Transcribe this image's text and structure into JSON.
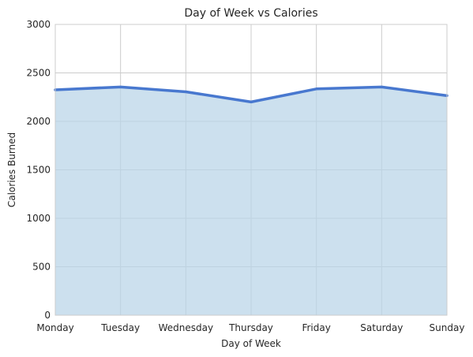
{
  "chart_data": {
    "type": "area",
    "title": "Day of Week vs Calories",
    "xlabel": "Day of Week",
    "ylabel": "Calories Burned",
    "categories": [
      "Monday",
      "Tuesday",
      "Wednesday",
      "Thursday",
      "Friday",
      "Saturday",
      "Sunday"
    ],
    "series": [
      {
        "values": [
          2325,
          2355,
          2305,
          2200,
          2335,
          2355,
          2265
        ]
      }
    ],
    "ylim": [
      0,
      3000
    ],
    "yticks": [
      0,
      500,
      1000,
      1500,
      2000,
      2500,
      3000
    ],
    "grid": true,
    "colors": {
      "line": "#4878cf",
      "fill": "#b9d4e8",
      "grid": "#cccccc",
      "text": "#262626",
      "frame": "#cccccc"
    }
  }
}
